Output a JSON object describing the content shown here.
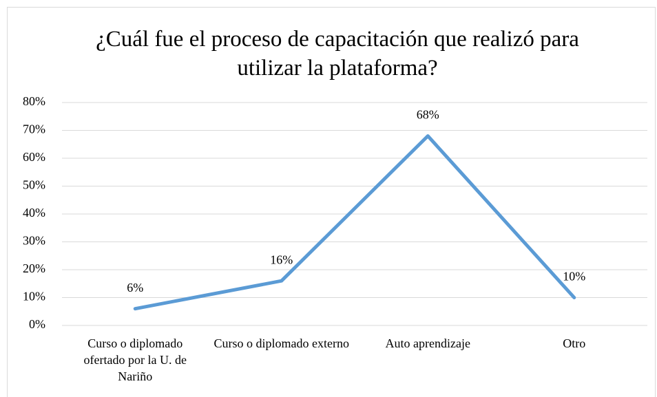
{
  "chart_data": {
    "type": "line",
    "title": "¿Cuál fue el proceso de capacitación que realizó para utilizar la plataforma?",
    "categories": [
      "Curso o  diplomado ofertado por la U. de Nariño",
      "Curso o  diplomado externo",
      "Auto aprendizaje",
      "Otro"
    ],
    "values": [
      6,
      16,
      68,
      10
    ],
    "value_labels": [
      "6%",
      "16%",
      "68%",
      "10%"
    ],
    "color": "#5b9bd5",
    "ylim": [
      0,
      80
    ],
    "yticks": [
      {
        "value": 0,
        "label": "0%"
      },
      {
        "value": 10,
        "label": "10%"
      },
      {
        "value": 20,
        "label": "20%"
      },
      {
        "value": 30,
        "label": "30%"
      },
      {
        "value": 40,
        "label": "40%"
      },
      {
        "value": 50,
        "label": "50%"
      },
      {
        "value": 60,
        "label": "60%"
      },
      {
        "value": 70,
        "label": "70%"
      },
      {
        "value": 80,
        "label": "80%"
      }
    ],
    "grid": true
  }
}
